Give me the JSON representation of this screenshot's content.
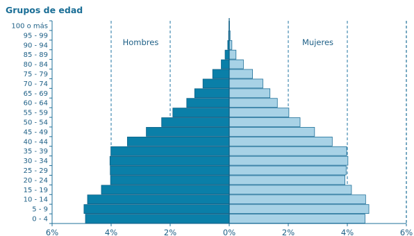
{
  "chart_data": {
    "type": "bar",
    "title": "Grupos de edad",
    "categories": [
      "0 - 4",
      "5 - 9",
      "10 - 14",
      "15 - 19",
      "20 - 24",
      "25 - 29",
      "30 - 34",
      "35 - 39",
      "40 - 44",
      "45 - 49",
      "50 - 54",
      "55 - 59",
      "60 - 64",
      "65 - 69",
      "70 - 74",
      "75 - 79",
      "80 - 84",
      "85 - 89",
      "90 - 94",
      "95 - 99",
      "100 o más"
    ],
    "series": [
      {
        "name": "Hombres",
        "color": "#0a7fa8",
        "values": [
          4.87,
          4.92,
          4.8,
          4.33,
          4.02,
          4.03,
          4.04,
          4.01,
          3.45,
          2.81,
          2.29,
          1.91,
          1.44,
          1.17,
          0.89,
          0.56,
          0.27,
          0.14,
          0.05,
          0.02,
          0.01
        ]
      },
      {
        "name": "Mujeres",
        "color": "#a8d2e6",
        "values": [
          4.6,
          4.73,
          4.62,
          4.14,
          3.92,
          3.96,
          4.02,
          3.98,
          3.49,
          2.89,
          2.4,
          2.02,
          1.63,
          1.38,
          1.14,
          0.79,
          0.48,
          0.23,
          0.09,
          0.03,
          0.01
        ]
      }
    ],
    "xticks": [
      "6%",
      "4%",
      "2%",
      "0%",
      "2%",
      "4%",
      "6%"
    ],
    "xlim": [
      -6,
      6
    ],
    "grid": "vertical dashed at ±2% and ±4%",
    "legend": "inline labels top-left (Hombres) and top-right (Mujeres)"
  }
}
